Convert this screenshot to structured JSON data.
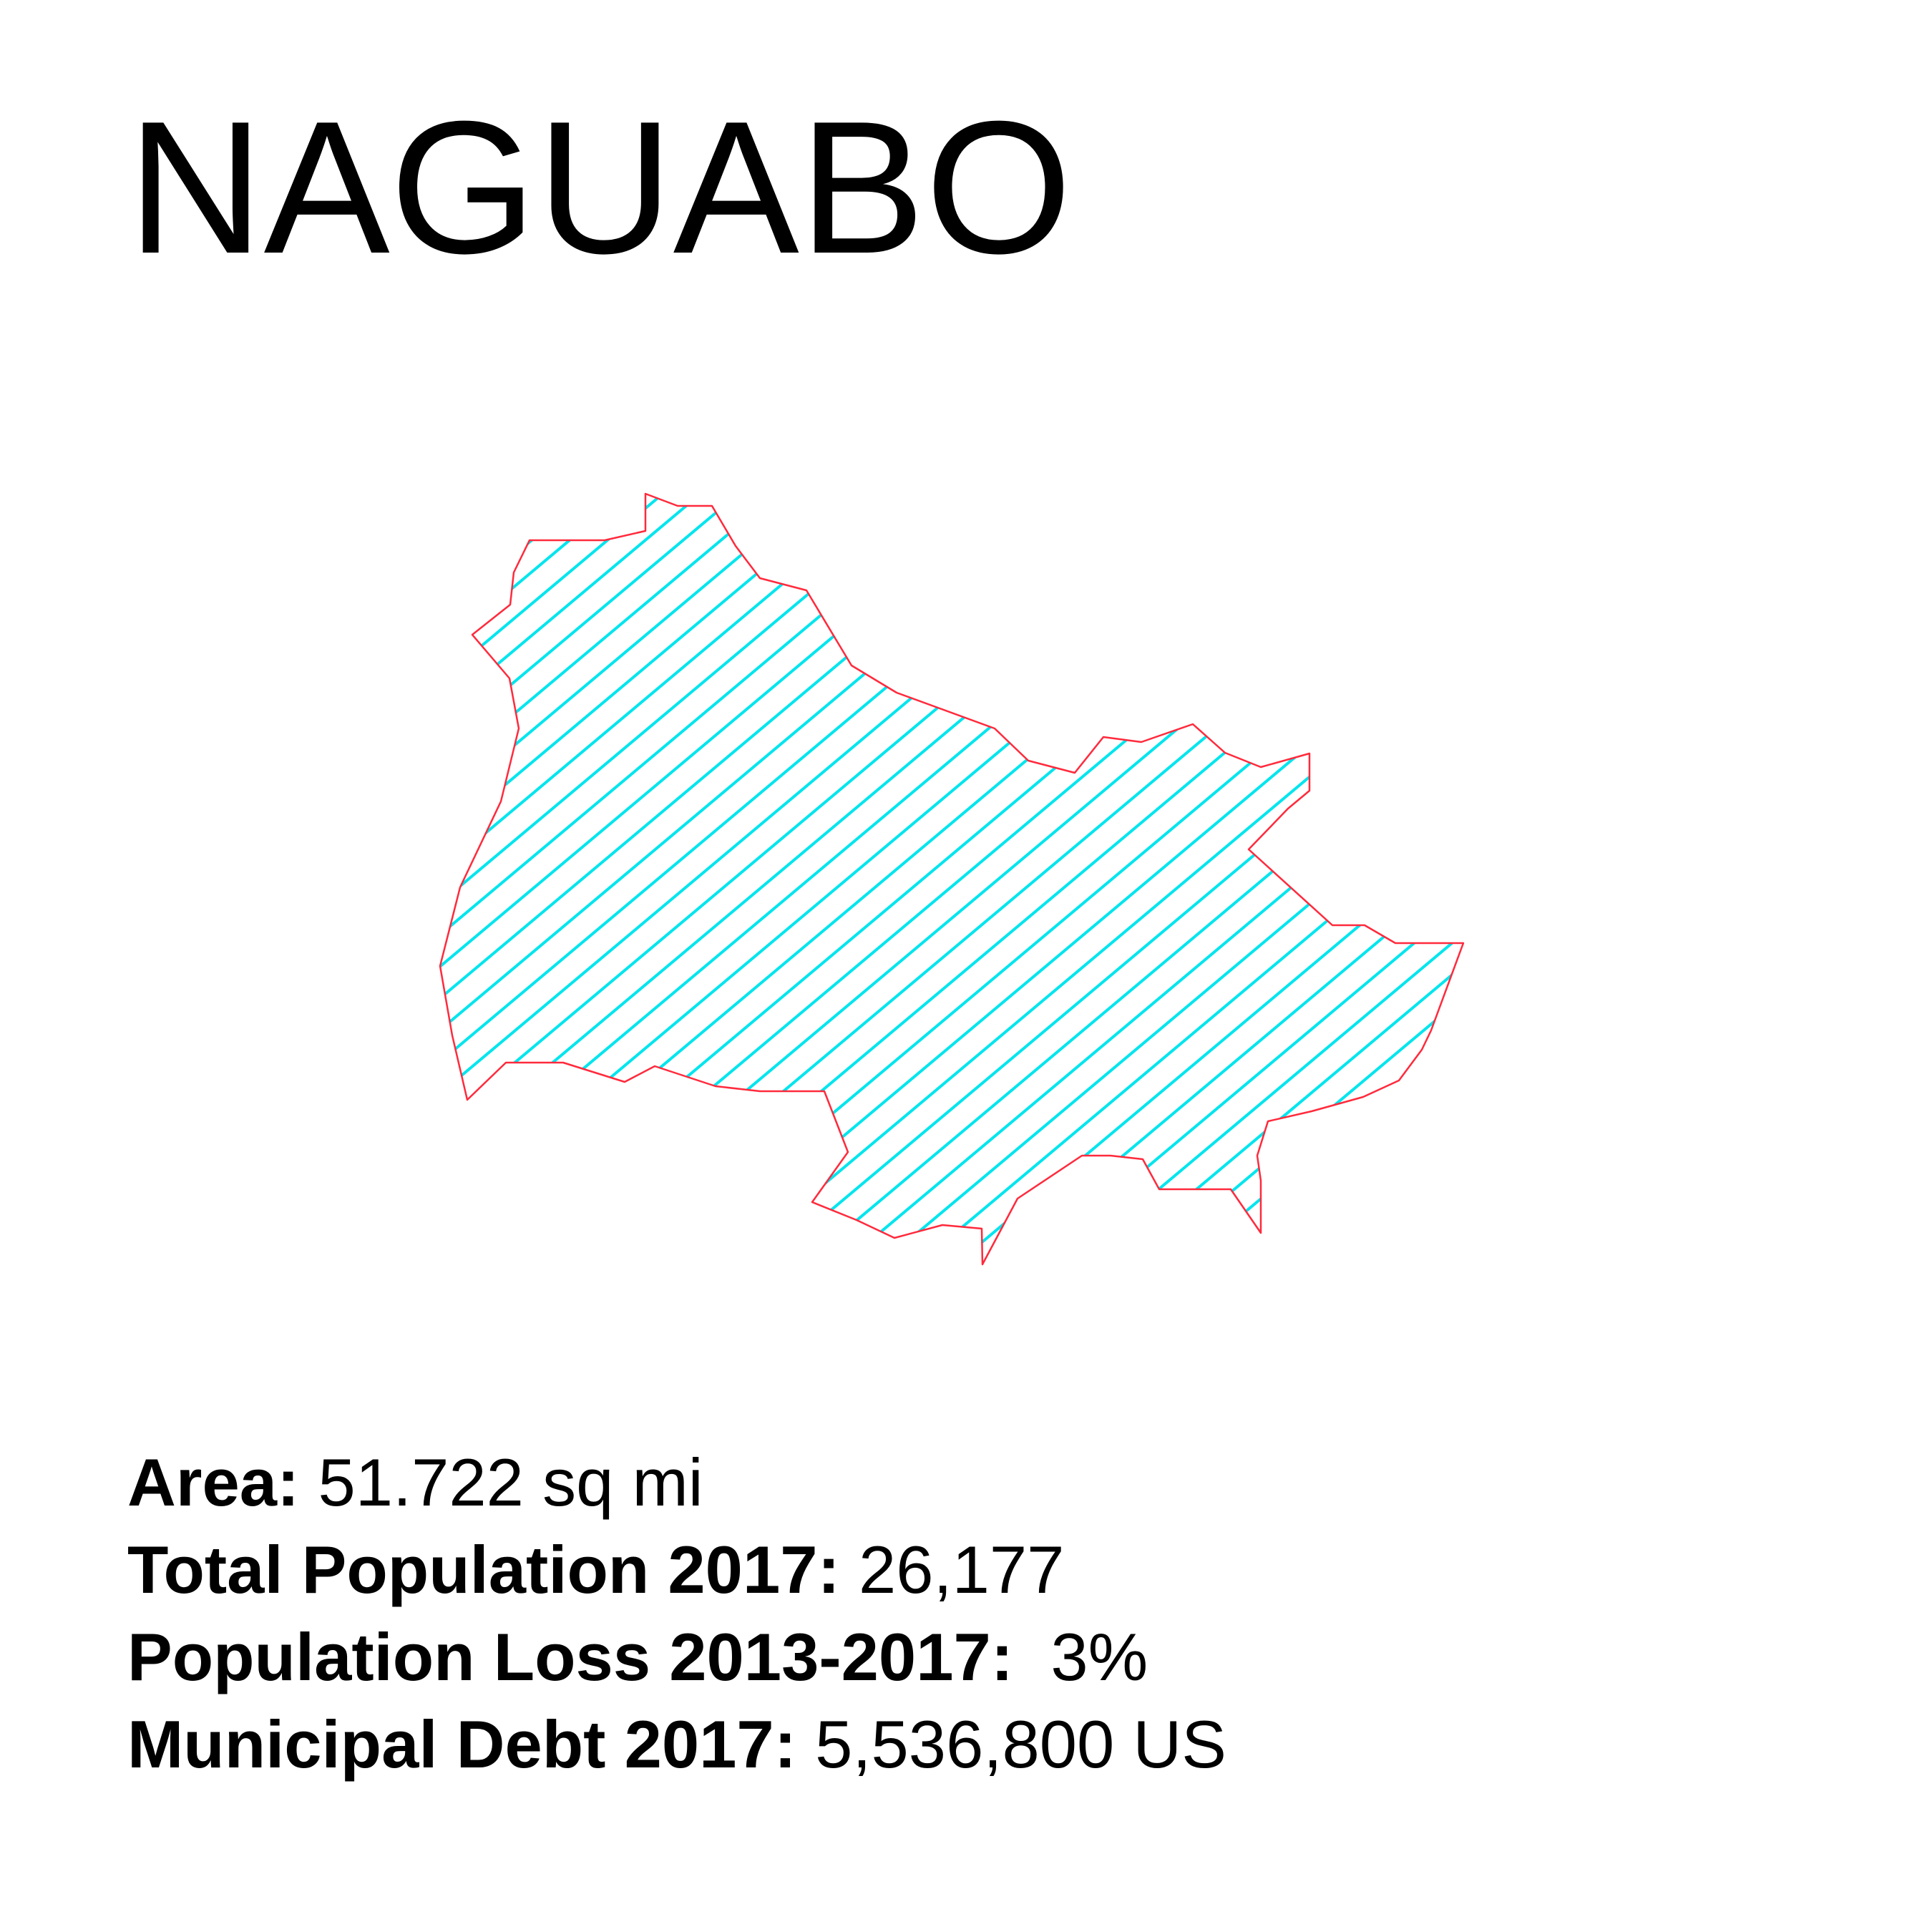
{
  "title": "NAGUABO",
  "map": {
    "fill_pattern": "diagonal-hatch",
    "hatch_color": "#00e5ee",
    "outline_color": "#ff2a3c",
    "background_color": "#ffffff"
  },
  "stats": [
    {
      "label": "Area:",
      "value": "51.722 sq mi"
    },
    {
      "label": "Total Population 2017:",
      "value": "26,177"
    },
    {
      "label": "Population Loss 2013-2017:",
      "value": " 3%"
    },
    {
      "label": "Municipal Debt 2017:",
      "value": "5,536,800 US"
    }
  ]
}
